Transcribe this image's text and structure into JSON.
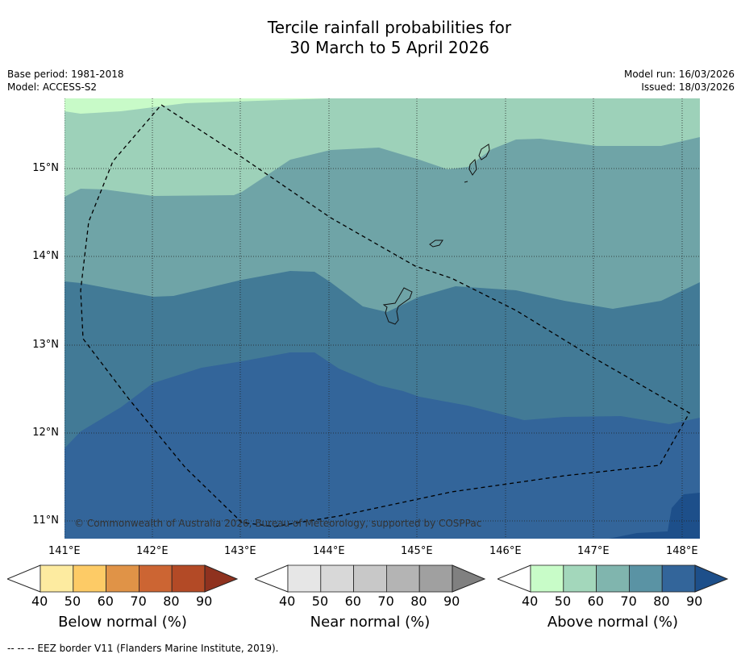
{
  "chart_data": {
    "type": "heatmap",
    "title_line1": "Tercile rainfall probabilities for",
    "title_line2": "30 March to 5 April 2026",
    "base_period": "Base period: 1981-2018",
    "model": "Model: ACCESS-S2",
    "model_run": "Model run: 16/03/2026",
    "issued": "Issued: 18/03/2026",
    "xlim": [
      141,
      148.2
    ],
    "ylim": [
      10.8,
      15.8
    ],
    "x_ticks": [
      "141°E",
      "142°E",
      "143°E",
      "144°E",
      "145°E",
      "146°E",
      "147°E",
      "148°E"
    ],
    "y_ticks": [
      "15°N",
      "14°N",
      "13°N",
      "12°N",
      "11°N"
    ],
    "copyright": "© Commonwealth of Australia 2026, Bureau of Meteorology, supported by COSPPac",
    "field_description": "Above normal probability increasing from 40-50% in the north to 80-90% in the south, 90%+ in far south-east",
    "bands": [
      {
        "category": "above",
        "range": "40-50",
        "color": "#c8fac8"
      },
      {
        "category": "above",
        "range": "50-60",
        "color": "#9dd1b9"
      },
      {
        "category": "above",
        "range": "60-70",
        "color": "#6fa4a7"
      },
      {
        "category": "above",
        "range": "70-80",
        "color": "#427a96"
      },
      {
        "category": "above",
        "range": "80-90",
        "color": "#33659a"
      },
      {
        "category": "above",
        "range": ">90",
        "color": "#1d4f8a"
      }
    ],
    "colorbars": [
      {
        "label": "Below normal (%)",
        "ticks": [
          "40",
          "50",
          "60",
          "70",
          "80",
          "90"
        ],
        "colors": [
          "#fdeba0",
          "#fdcb66",
          "#e09347",
          "#cc6533",
          "#b34a26"
        ],
        "over": "#8f321f"
      },
      {
        "label": "Near normal (%)",
        "ticks": [
          "40",
          "50",
          "60",
          "70",
          "80",
          "90"
        ],
        "colors": [
          "#e6e6e6",
          "#d8d8d8",
          "#c8c8c8",
          "#b4b4b4",
          "#a0a0a0"
        ],
        "over": "#808080"
      },
      {
        "label": "Above normal (%)",
        "ticks": [
          "40",
          "50",
          "60",
          "70",
          "80",
          "90"
        ],
        "colors": [
          "#c8fcc8",
          "#a3d7bb",
          "#80b5ae",
          "#5a93a4",
          "#33659a"
        ],
        "over": "#1d4f8a"
      }
    ],
    "footnote": "--  --  -- EEZ border V11 (Flanders Marine Institute, 2019)."
  }
}
